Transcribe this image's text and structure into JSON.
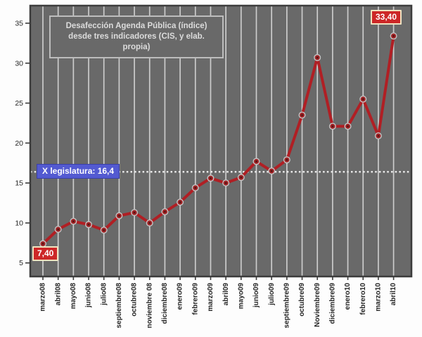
{
  "chart_data": {
    "type": "line",
    "title": "Desafección Agenda Pública (índice) desde tres indicadores (CIS, y elab. propia)",
    "title_lines": [
      "Desafección Agenda Pública (índice)",
      "desde tres indicadores (CIS, y elab.",
      "propia)"
    ],
    "xlabel": "",
    "ylabel": "",
    "categories": [
      "marzo08",
      "abril08",
      "mayo08",
      "junio08",
      "julio08",
      "septiembre08",
      "octubre08",
      "noviembre 08",
      "diciembre08",
      "enero09",
      "febrero09",
      "marzo09",
      "abril09",
      "mayo09",
      "junio09",
      "julio09",
      "septiembre09",
      "octubre09",
      "Noviembre09",
      "diciembre09",
      "enero10",
      "febrero10",
      "marzo10",
      "abril10"
    ],
    "values": [
      7.4,
      9.2,
      10.2,
      9.8,
      9.1,
      10.9,
      11.3,
      10.0,
      11.4,
      12.6,
      14.4,
      15.6,
      15.0,
      15.7,
      17.7,
      16.5,
      17.9,
      23.5,
      30.7,
      22.1,
      22.1,
      25.5,
      20.9,
      33.4
    ],
    "yticks": [
      5,
      10,
      15,
      20,
      25,
      30,
      35
    ],
    "ylim": [
      3.3,
      37.2
    ],
    "grid": "vertical-only",
    "legend": "none",
    "reference_line": {
      "label": "X legislatura: 16,4",
      "value": 16.4
    },
    "point_labels": [
      {
        "index": 0,
        "text": "7,40"
      },
      {
        "index": 23,
        "text": "33,40"
      }
    ],
    "colors": {
      "line": "#b01f24",
      "marker_fill": "#a02427",
      "marker_center": "#541110",
      "marker_ring": "#c4c4c4",
      "plot_bg": "#696969",
      "plot_border": "#3c3c3c",
      "gridline": "#cccccc",
      "ref_line": "#e8e8e8",
      "ref_label_bg": "#535ad1",
      "point_label_bg": "#cd2727",
      "point_label_border": "#efe3c0",
      "page_bg": "#fdfdfd",
      "axis_text": "#262626",
      "title_text": "#dcdcdc",
      "title_border": "#bdbdbd"
    }
  }
}
